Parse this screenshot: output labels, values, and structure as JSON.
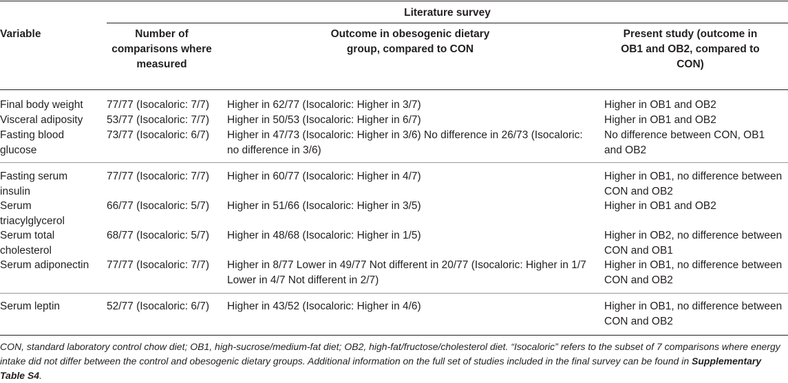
{
  "header": {
    "group_label": "Literature survey",
    "col_variable": "Variable",
    "col_comparisons": "Number of comparisons where measured",
    "col_outcome": "Outcome in obesogenic dietary group, compared to CON",
    "col_present": "Present study (outcome in OB1 and OB2, compared to CON)"
  },
  "rows": [
    {
      "variable": "Final body weight",
      "comparisons": "77/77 (Isocaloric: 7/7)",
      "outcome": "Higher in 62/77 (Isocaloric: Higher in 3/7)",
      "present": "Higher in OB1 and OB2"
    },
    {
      "variable": "Visceral adiposity",
      "comparisons": "53/77 (Isocaloric: 7/7)",
      "outcome": "Higher in 50/53 (Isocaloric: Higher in 6/7)",
      "present": "Higher in OB1 and OB2"
    },
    {
      "variable": "Fasting blood glucose",
      "comparisons": "73/77 (Isocaloric: 6/7)",
      "outcome": "Higher in 47/73 (Isocaloric: Higher in 3/6) No difference in 26/73 (Isocaloric: no difference in 3/6)",
      "present": "No difference between CON, OB1 and OB2"
    },
    {
      "variable": "Fasting serum insulin",
      "comparisons": "77/77 (Isocaloric: 7/7)",
      "outcome": "Higher in 60/77 (Isocaloric: Higher in 4/7)",
      "present": "Higher in OB1, no difference between CON and OB2"
    },
    {
      "variable": "Serum triacylglycerol",
      "comparisons": "66/77 (Isocaloric: 5/7)",
      "outcome": "Higher in 51/66 (Isocaloric: Higher in 3/5)",
      "present": "Higher in OB1 and OB2"
    },
    {
      "variable": "Serum total cholesterol",
      "comparisons": "68/77 (Isocaloric: 5/7)",
      "outcome": "Higher in 48/68 (Isocaloric: Higher in 1/5)",
      "present": "Higher in OB2, no difference between CON and OB1"
    },
    {
      "variable": "Serum adiponectin",
      "comparisons": "77/77 (Isocaloric: 7/7)",
      "outcome": "Higher in 8/77 Lower in 49/77 Not different in 20/77 (Isocaloric: Higher in 1/7 Lower in 4/7 Not different in 2/7)",
      "present": "Higher in OB1, no difference between CON and OB2"
    },
    {
      "variable": "Serum leptin",
      "comparisons": "52/77 (Isocaloric: 6/7)",
      "outcome": "Higher in 43/52 (Isocaloric: Higher in 4/6)",
      "present": "Higher in OB1, no difference between CON and OB2"
    }
  ],
  "footnote": {
    "text": "CON, standard laboratory control chow diet; OB1, high-sucrose/medium-fat diet; OB2, high-fat/fructose/cholesterol diet. “Isocaloric” refers to the subset of 7 comparisons where energy intake did not differ between the control and obesogenic dietary groups. Additional information on the full set of studies included in the final survey can be found in ",
    "link": "Supplementary Table S4",
    "end": "."
  }
}
